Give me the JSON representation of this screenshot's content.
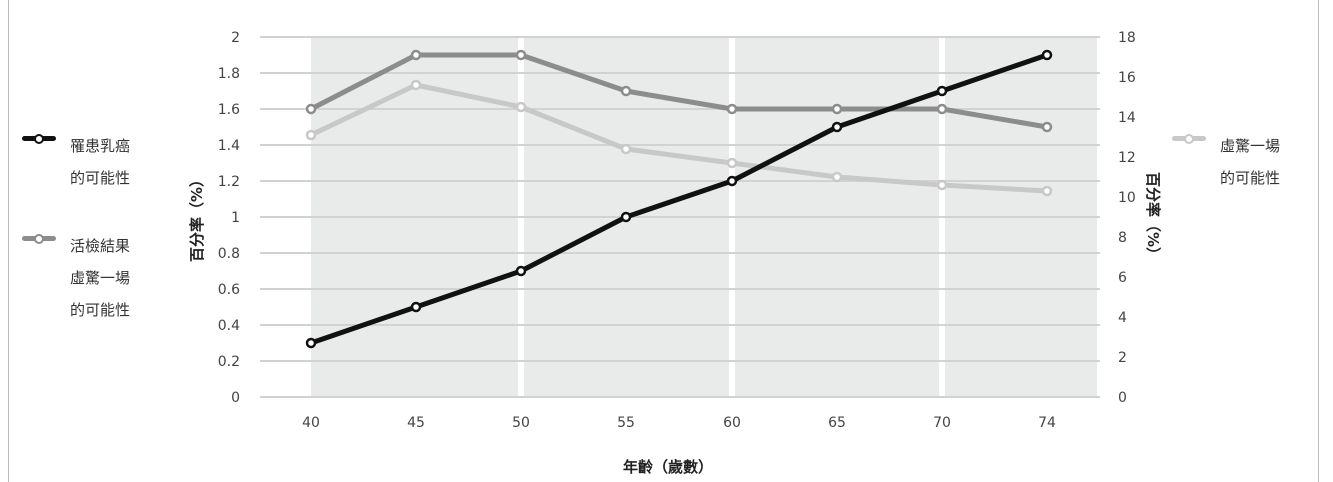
{
  "chart_data": {
    "type": "line",
    "title": "",
    "x": [
      "40",
      "45",
      "50",
      "55",
      "60",
      "65",
      "70",
      "74"
    ],
    "xlabel": "年齡（歲數）",
    "ylabel_left": "百分率（%）",
    "ylabel_right": "百分率（%）",
    "ylim_left": [
      0,
      2
    ],
    "ylim_right": [
      0,
      18
    ],
    "yticks_left": [
      "0",
      "0.2",
      "0.4",
      "0.6",
      "0.8",
      "1",
      "1.2",
      "1.4",
      "1.6",
      "1.8",
      "2"
    ],
    "yticks_right": [
      "0",
      "2",
      "4",
      "6",
      "8",
      "10",
      "12",
      "14",
      "16",
      "18"
    ],
    "grid": true,
    "series": [
      {
        "name": "罹患乳癌的可能性",
        "axis": "left",
        "color": "#111111",
        "values": [
          0.3,
          0.5,
          0.7,
          1.0,
          1.2,
          1.5,
          1.7,
          1.9
        ]
      },
      {
        "name": "活檢結果虛驚一場的可能性",
        "axis": "left",
        "color": "#8c8c8c",
        "values": [
          1.6,
          1.9,
          1.9,
          1.7,
          1.6,
          1.6,
          1.6,
          1.5
        ]
      },
      {
        "name": "虛驚一場的可能性",
        "axis": "right",
        "color": "#c8c8c8",
        "values": [
          13.1,
          15.6,
          14.5,
          12.4,
          11.7,
          11.0,
          10.6,
          10.3
        ]
      }
    ]
  },
  "legend": {
    "left": [
      {
        "lines": [
          "罹患乳癌",
          "的可能性"
        ],
        "color": "#111111"
      },
      {
        "lines": [
          "活檢結果",
          "虛驚一場",
          "的可能性"
        ],
        "color": "#8c8c8c"
      }
    ],
    "right": [
      {
        "lines": [
          "虛驚一場",
          "的可能性"
        ],
        "color": "#c8c8c8"
      }
    ]
  }
}
